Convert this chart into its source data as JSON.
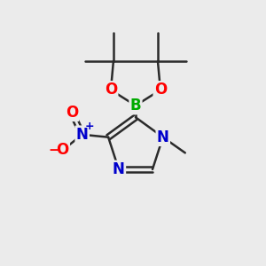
{
  "background_color": "#ebebeb",
  "bond_color": "#2a2a2a",
  "bond_width": 1.8,
  "atom_colors": {
    "B": "#00aa00",
    "O": "#ff0000",
    "N": "#0000cc",
    "C": "#2a2a2a",
    "plus": "#0000cc",
    "minus": "#ff0000"
  },
  "figsize": [
    3.0,
    3.0
  ],
  "dpi": 100
}
